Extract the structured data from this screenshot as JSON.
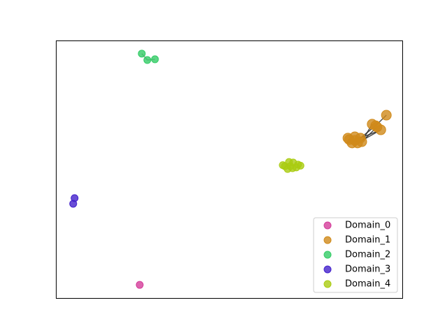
{
  "chart_data": {
    "type": "scatter",
    "xlim": [
      0,
      100
    ],
    "ylim": [
      0,
      100
    ],
    "legend": "lower right",
    "series": [
      {
        "name": "Domain_0",
        "color": "#d43d9a",
        "x": [
          24.2
        ],
        "y": [
          5.1
        ],
        "edges": []
      },
      {
        "name": "Domain_1",
        "color": "#d08a1a",
        "x": [
          84.7,
          86.3,
          87.9,
          85.5,
          87.1,
          86.3,
          84.3,
          88.3,
          95.4,
          91.3,
          92.3,
          92.7,
          93.8
        ],
        "y": [
          61.5,
          62.6,
          62.1,
          60.2,
          60.2,
          61.2,
          62.1,
          60.7,
          71.0,
          67.5,
          66.9,
          66.4,
          65.3
        ],
        "edges": [
          [
            7,
            9
          ],
          [
            2,
            10
          ],
          [
            7,
            11
          ],
          [
            2,
            12
          ],
          [
            4,
            12
          ],
          [
            10,
            8
          ]
        ]
      },
      {
        "name": "Domain_2",
        "color": "#33cc66",
        "x": [
          24.8,
          26.4,
          28.6
        ],
        "y": [
          94.9,
          92.4,
          92.7
        ],
        "edges": [
          [
            0,
            1
          ],
          [
            1,
            2
          ]
        ]
      },
      {
        "name": "Domain_3",
        "color": "#4422cc",
        "x": [
          5.4,
          5.0
        ],
        "y": [
          38.8,
          36.6
        ],
        "edges": []
      },
      {
        "name": "Domain_4",
        "color": "#aacc11",
        "x": [
          66.1,
          67.3,
          68.5,
          69.9,
          66.9,
          68.3,
          67.7,
          69.4,
          65.5,
          70.6
        ],
        "y": [
          51.2,
          52.8,
          52.6,
          51.8,
          50.1,
          50.4,
          51.2,
          50.7,
          51.6,
          51.4
        ],
        "edges": []
      }
    ]
  }
}
